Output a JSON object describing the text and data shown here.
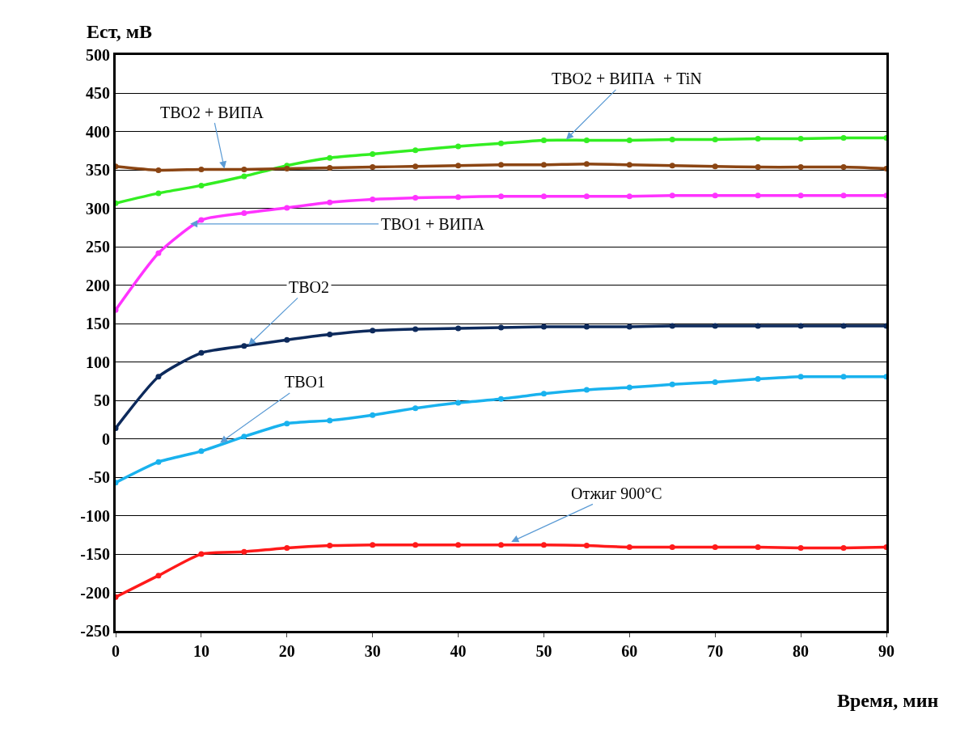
{
  "chart_data": {
    "type": "line",
    "xlabel": "Время, мин",
    "ylabel": "Ест, мВ",
    "x": [
      0,
      5,
      10,
      15,
      20,
      25,
      30,
      35,
      40,
      45,
      50,
      55,
      60,
      65,
      70,
      75,
      80,
      85,
      90
    ],
    "series": [
      {
        "color": "#33ee22",
        "values": [
          307,
          320,
          330,
          342,
          356,
          366,
          371,
          376,
          381,
          385,
          389,
          389,
          389,
          390,
          390,
          391,
          391,
          392,
          392
        ]
      },
      {
        "color": "#8b4513",
        "values": [
          355,
          350,
          351,
          351,
          352,
          353,
          354,
          355,
          356,
          357,
          357,
          358,
          357,
          356,
          355,
          354,
          354,
          354,
          352
        ]
      },
      {
        "color": "#ff33ff",
        "values": [
          168,
          242,
          285,
          294,
          301,
          308,
          312,
          314,
          315,
          316,
          316,
          316,
          316,
          317,
          317,
          317,
          317,
          317,
          317
        ]
      },
      {
        "color": "#0d2a5c",
        "values": [
          14,
          81,
          112,
          121,
          129,
          136,
          141,
          143,
          144,
          145,
          146,
          146,
          146,
          147,
          147,
          147,
          147,
          147,
          147
        ]
      },
      {
        "color": "#19b2ee",
        "values": [
          -57,
          -30,
          -16,
          3,
          20,
          24,
          31,
          40,
          47,
          52,
          59,
          64,
          67,
          71,
          74,
          78,
          81,
          81,
          81
        ]
      },
      {
        "color": "#ff1a1a",
        "values": [
          -206,
          -178,
          -150,
          -147,
          -142,
          -139,
          -138,
          -138,
          -138,
          -138,
          -138,
          -139,
          -141,
          -141,
          -141,
          -141,
          -142,
          -142,
          -141
        ]
      }
    ],
    "annotations": [
      {
        "text": "ТВО2 + ВИПА  + TiN",
        "x": 52.6,
        "y": 390
      },
      {
        "text": "ТВО2 + ВИПА",
        "x": 12.7,
        "y": 352
      },
      {
        "text": "ТВО1 + ВИПА",
        "x": 8.7,
        "y": 280
      },
      {
        "text": "ТВО2",
        "x": 15.5,
        "y": 122
      },
      {
        "text": "ТВО1",
        "x": 12.2,
        "y": -5
      },
      {
        "text": "Отжиг 900°C",
        "x": 46.2,
        "y": -134
      }
    ],
    "xlim": [
      0,
      90
    ],
    "xticks": [
      0,
      10,
      20,
      30,
      40,
      50,
      60,
      70,
      80,
      90
    ],
    "ylim": [
      -250,
      500
    ],
    "yticks": [
      -250,
      -200,
      -150,
      -100,
      -50,
      0,
      50,
      100,
      150,
      200,
      250,
      300,
      350,
      400,
      450,
      500
    ],
    "grid": "y",
    "marker": "circle",
    "line_style": "solid"
  }
}
